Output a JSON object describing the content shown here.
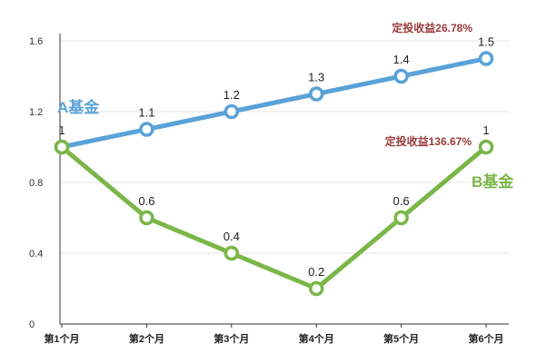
{
  "chart_data": {
    "type": "line",
    "categories": [
      "第1个月",
      "第2个月",
      "第3个月",
      "第4个月",
      "第5个月",
      "第6个月"
    ],
    "ylim": [
      0,
      1.6
    ],
    "yticks": [
      "0",
      "0.4",
      "0.8",
      "1.2",
      "1.6"
    ],
    "grid": true,
    "series": [
      {
        "name": "A基金",
        "color": "#5aa2d8",
        "values": [
          1,
          1.1,
          1.2,
          1.3,
          1.4,
          1.5
        ],
        "labels": [
          "1",
          "1.1",
          "1.2",
          "1.3",
          "1.4",
          "1.5"
        ]
      },
      {
        "name": "B基金",
        "color": "#7ab648",
        "values": [
          1,
          0.6,
          0.4,
          0.2,
          0.6,
          1
        ],
        "labels": [
          "1",
          "0.6",
          "0.4",
          "0.2",
          "0.6",
          "1"
        ]
      }
    ],
    "annotations": [
      {
        "text": "定投收益26.78%",
        "color": "#9b3b3b"
      },
      {
        "text": "定投收益136.67%",
        "color": "#9b3b3b"
      }
    ]
  }
}
